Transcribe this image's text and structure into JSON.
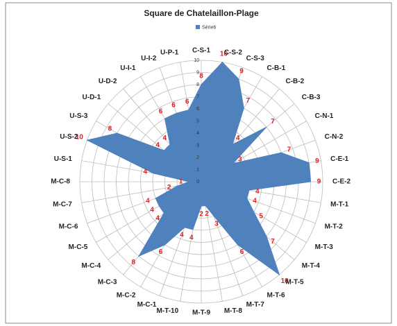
{
  "chart_data": {
    "type": "radar",
    "title": "Square de Chatelaillon-Plage",
    "categories": [
      "C-S-1",
      "C-S-2",
      "C-S-3",
      "C-B-1",
      "C-B-2",
      "C-B-3",
      "C-N-1",
      "C-N-2",
      "C-E-1",
      "C-E-2",
      "M-T-1",
      "M-T-2",
      "M-T-3",
      "M-T-4",
      "M-T-5",
      "M-T-6",
      "M-T-7",
      "M-T-8",
      "M-T-9",
      "M-T-10",
      "M-C-1",
      "M-C-2",
      "M-C-3",
      "M-C-4",
      "M-C-5",
      "M-C-6",
      "M-C-7",
      "M-C-8",
      "U-S-1",
      "U-S-2",
      "U-S-3",
      "U-D-1",
      "U-D-2",
      "U-I-1",
      "U-I-2",
      "U-P-1"
    ],
    "series": [
      {
        "name": "Série6",
        "color": "#4f81bd",
        "values": [
          8,
          10,
          9,
          7,
          4,
          7,
          3,
          7,
          9,
          9,
          4,
          4,
          5,
          7,
          10,
          6,
          3,
          2,
          2,
          4,
          4,
          6,
          8,
          4,
          4,
          4,
          2,
          1,
          4,
          10,
          8,
          4,
          4,
          6,
          6,
          6
        ]
      }
    ],
    "rlim": [
      0,
      10
    ],
    "rticks": [
      0,
      1,
      2,
      3,
      4,
      5,
      6,
      7,
      8,
      9,
      10
    ],
    "grid": true,
    "legend": "top"
  }
}
